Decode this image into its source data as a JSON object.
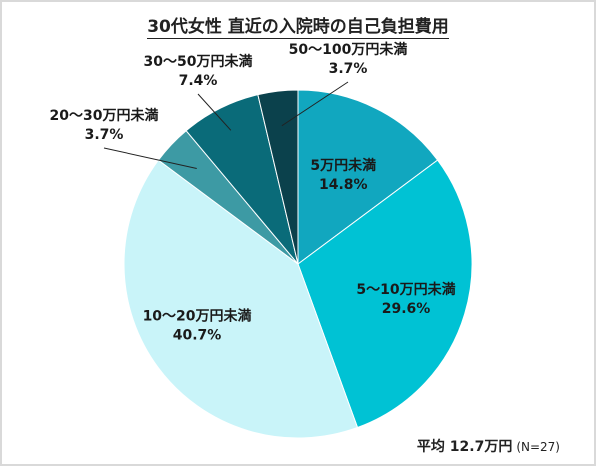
{
  "chart_data": {
    "type": "pie",
    "title": "30代女性 直近の入院時の自己負担費用",
    "slices": [
      {
        "label": "5万円未満",
        "value": 14.8,
        "display": "14.8%",
        "color": "#11a7bf"
      },
      {
        "label": "5～10万円未満",
        "value": 29.6,
        "display": "29.6%",
        "color": "#00c2d4"
      },
      {
        "label": "10～20万円未満",
        "value": 40.7,
        "display": "40.7%",
        "color": "#c9f4f9"
      },
      {
        "label": "20～30万円未満",
        "value": 3.7,
        "display": "3.7%",
        "color": "#3d9aa4"
      },
      {
        "label": "30～50万円未満",
        "value": 7.4,
        "display": "7.4%",
        "color": "#0a6b79"
      },
      {
        "label": "50～100万円未満",
        "value": 3.7,
        "display": "3.7%",
        "color": "#0b414c"
      }
    ],
    "start": "top",
    "direction": "clockwise"
  },
  "footer": {
    "average": "平均 12.7万円",
    "n": "(N=27)"
  }
}
